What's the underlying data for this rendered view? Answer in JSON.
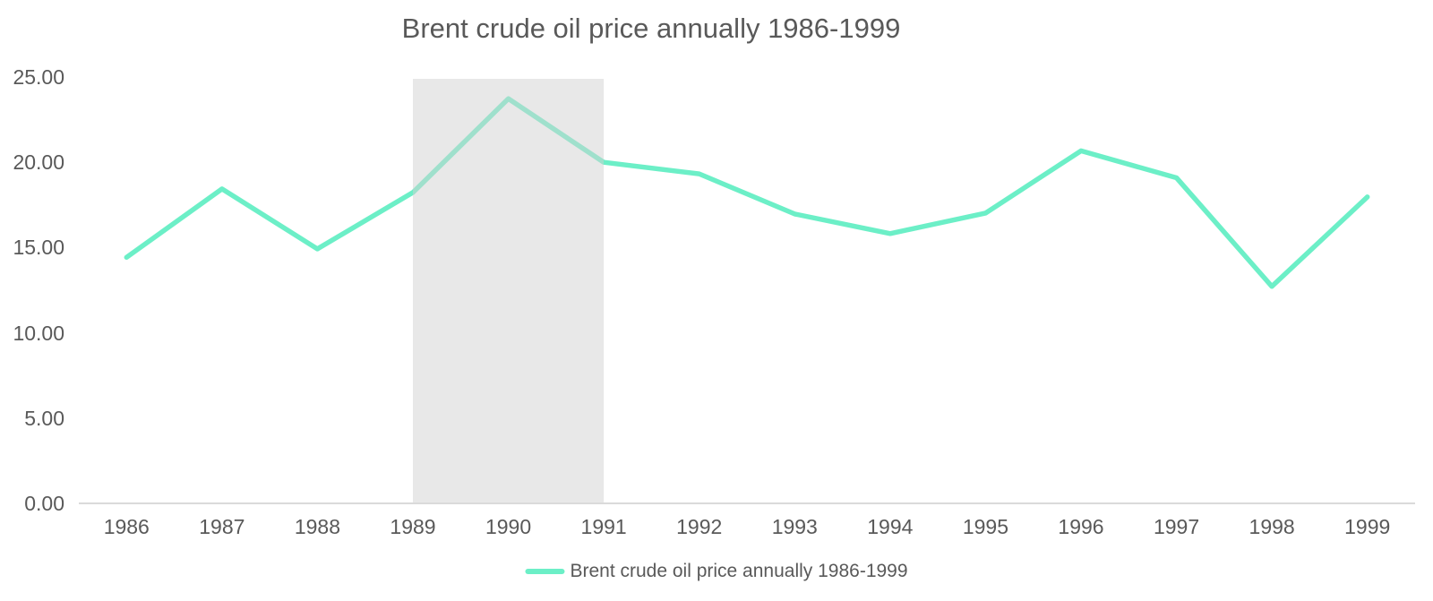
{
  "title": "Brent crude oil price annually 1986-1999",
  "legend": {
    "label": "Brent crude oil price annually 1986-1999"
  },
  "colors": {
    "line": "#6CEFC7",
    "band": "rgba(209,209,209,0.5)",
    "axis": "#DADADA",
    "text": "#595959"
  },
  "chart_data": {
    "type": "line",
    "title": "Brent crude oil price annually 1986-1999",
    "categories": [
      "1986",
      "1987",
      "1988",
      "1989",
      "1990",
      "1991",
      "1992",
      "1993",
      "1994",
      "1995",
      "1996",
      "1997",
      "1998",
      "1999"
    ],
    "series": [
      {
        "name": "Brent crude oil price annually 1986-1999",
        "values": [
          14.43,
          18.44,
          14.92,
          18.23,
          23.73,
          20.0,
          19.32,
          16.97,
          15.82,
          17.02,
          20.67,
          19.09,
          12.72,
          17.97
        ]
      }
    ],
    "xlabel": "",
    "ylabel": "",
    "ylim": [
      0,
      25
    ],
    "yticks": [
      {
        "v": 0,
        "label": "0.00"
      },
      {
        "v": 5,
        "label": "5.00"
      },
      {
        "v": 10,
        "label": "10.00"
      },
      {
        "v": 15,
        "label": "15.00"
      },
      {
        "v": 20,
        "label": "20.00"
      },
      {
        "v": 25,
        "label": "25.00"
      }
    ],
    "grid": false,
    "legend_position": "bottom",
    "highlight_band": {
      "from": "1989",
      "to": "1991"
    }
  }
}
